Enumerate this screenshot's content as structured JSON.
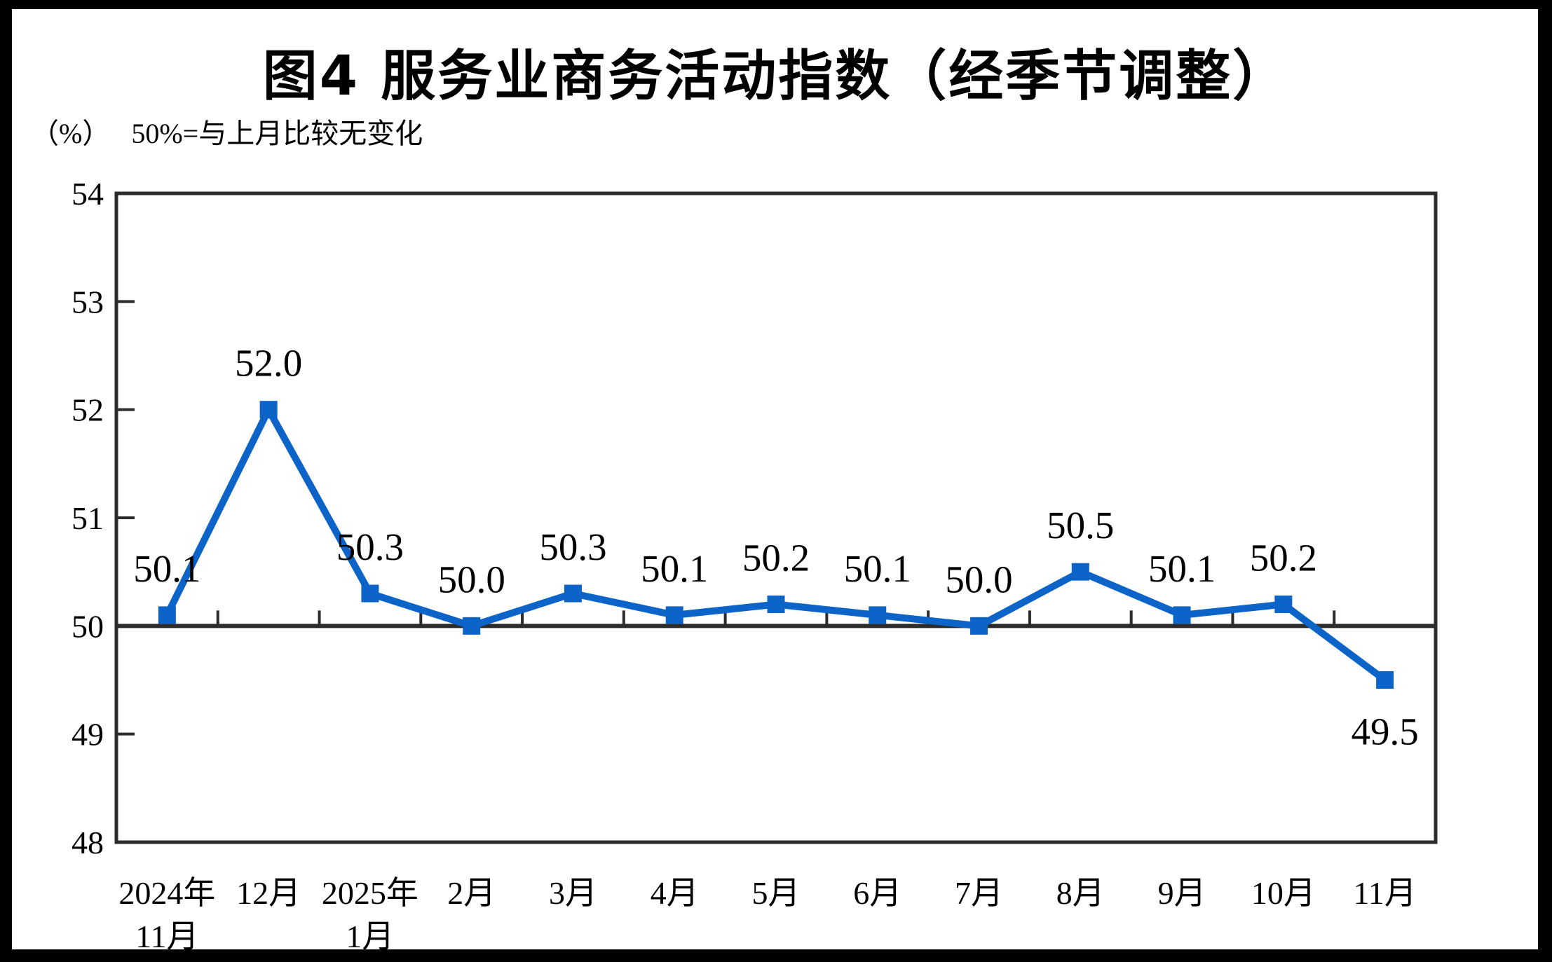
{
  "figure": {
    "title": "图4 服务业商务活动指数（经季节调整）",
    "unit_label": "（%）",
    "baseline_note": "50%=与上月比较无变化"
  },
  "chart_data": {
    "type": "line",
    "title": "图4 服务业商务活动指数（经季节调整）",
    "unit_label": "（%）",
    "annotation": "50%=与上月比较无变化",
    "categories": [
      [
        "2024年",
        "11月"
      ],
      [
        "12月"
      ],
      [
        "2025年",
        "1月"
      ],
      [
        "2月"
      ],
      [
        "3月"
      ],
      [
        "4月"
      ],
      [
        "5月"
      ],
      [
        "6月"
      ],
      [
        "7月"
      ],
      [
        "8月"
      ],
      [
        "9月"
      ],
      [
        "10月"
      ],
      [
        "11月"
      ]
    ],
    "series": [
      {
        "name": "服务业商务活动指数",
        "values": [
          50.1,
          52.0,
          50.3,
          50.0,
          50.3,
          50.1,
          50.2,
          50.1,
          50.0,
          50.5,
          50.1,
          50.2,
          49.5
        ],
        "color": "#0d64c8",
        "marker": "square"
      }
    ],
    "ylim": [
      48,
      54
    ],
    "yticks": [
      48,
      49,
      50,
      51,
      52,
      53,
      54
    ],
    "baseline_value": 50,
    "label_decimals": 1,
    "label_below_indices": [
      12
    ],
    "grid": false,
    "legend_position": "none",
    "axis_color": "#2b2b2b",
    "text_color": "#000000"
  }
}
